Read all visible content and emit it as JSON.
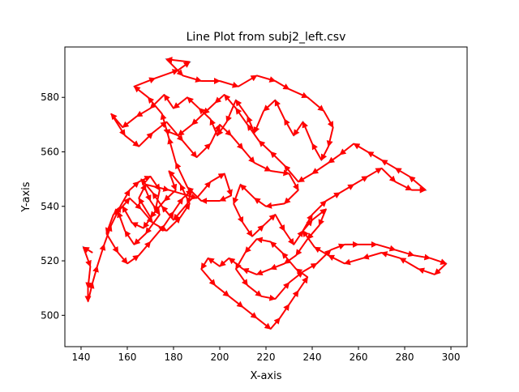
{
  "chart_data": {
    "type": "line",
    "title": "Line Plot from subj2_left.csv",
    "xlabel": "X-axis",
    "ylabel": "Y-axis",
    "xlim": [
      133,
      307
    ],
    "ylim": [
      488.5,
      598.5
    ],
    "xticks": [
      140,
      160,
      180,
      200,
      220,
      240,
      260,
      280,
      300
    ],
    "yticks": [
      500,
      520,
      540,
      560,
      580
    ],
    "grid": false,
    "legend": "none",
    "colors": {
      "line": "#1f77b4",
      "arrow": "#ff0000",
      "axes": "#000000"
    },
    "series": [
      {
        "values": [
          [
            145,
            523
          ],
          [
            141,
            525
          ],
          [
            144,
            518
          ],
          [
            143,
            510
          ],
          [
            143,
            505
          ],
          [
            145,
            512
          ],
          [
            147,
            518
          ],
          [
            150,
            526
          ],
          [
            153,
            533
          ],
          [
            157,
            540
          ],
          [
            161,
            546
          ],
          [
            165,
            549
          ],
          [
            170,
            551
          ],
          [
            174,
            546
          ],
          [
            172,
            538
          ],
          [
            167,
            532
          ],
          [
            162,
            534
          ],
          [
            158,
            540
          ],
          [
            154,
            537
          ],
          [
            151,
            530
          ],
          [
            156,
            523
          ],
          [
            160,
            519
          ],
          [
            165,
            522
          ],
          [
            170,
            527
          ],
          [
            176,
            533
          ],
          [
            180,
            538
          ],
          [
            184,
            543
          ],
          [
            188,
            546
          ],
          [
            186,
            541
          ],
          [
            180,
            535
          ],
          [
            175,
            540
          ],
          [
            171,
            545
          ],
          [
            166,
            550
          ],
          [
            170,
            542
          ],
          [
            174,
            537
          ],
          [
            168,
            530
          ],
          [
            163,
            526
          ],
          [
            159,
            531
          ],
          [
            156,
            538
          ],
          [
            161,
            543
          ],
          [
            166,
            539
          ],
          [
            171,
            534
          ],
          [
            177,
            531
          ],
          [
            183,
            536
          ],
          [
            187,
            541
          ],
          [
            183,
            548
          ],
          [
            178,
            553
          ],
          [
            181,
            546
          ],
          [
            176,
            542
          ],
          [
            170,
            536
          ],
          [
            165,
            543
          ],
          [
            168,
            548
          ],
          [
            178,
            546
          ],
          [
            190,
            543
          ],
          [
            196,
            549
          ],
          [
            202,
            552
          ],
          [
            205,
            544
          ],
          [
            200,
            542
          ],
          [
            192,
            542
          ],
          [
            186,
            547
          ],
          [
            181,
            556
          ],
          [
            178,
            565
          ],
          [
            175,
            574
          ],
          [
            169,
            580
          ],
          [
            163,
            584
          ],
          [
            172,
            587
          ],
          [
            182,
            590
          ],
          [
            187,
            593
          ],
          [
            177,
            594
          ],
          [
            184,
            588
          ],
          [
            192,
            586
          ],
          [
            200,
            586
          ],
          [
            208,
            584
          ],
          [
            216,
            588
          ],
          [
            224,
            586
          ],
          [
            230,
            583
          ],
          [
            238,
            580
          ],
          [
            245,
            575
          ],
          [
            249,
            569
          ],
          [
            247,
            562
          ],
          [
            244,
            557
          ],
          [
            240,
            563
          ],
          [
            236,
            571
          ],
          [
            232,
            566
          ],
          [
            228,
            572
          ],
          [
            224,
            579
          ],
          [
            219,
            575
          ],
          [
            215,
            567
          ],
          [
            212,
            573
          ],
          [
            207,
            579
          ],
          [
            203,
            571
          ],
          [
            199,
            566
          ],
          [
            196,
            572
          ],
          [
            191,
            576
          ],
          [
            186,
            580
          ],
          [
            180,
            576
          ],
          [
            176,
            581
          ],
          [
            170,
            576
          ],
          [
            164,
            573
          ],
          [
            158,
            569
          ],
          [
            153,
            574
          ],
          [
            159,
            566
          ],
          [
            165,
            562
          ],
          [
            171,
            567
          ],
          [
            177,
            571
          ],
          [
            184,
            564
          ],
          [
            190,
            558
          ],
          [
            196,
            563
          ],
          [
            200,
            570
          ],
          [
            205,
            566
          ],
          [
            210,
            561
          ],
          [
            215,
            556
          ],
          [
            222,
            553
          ],
          [
            230,
            552
          ],
          [
            234,
            546
          ],
          [
            228,
            541
          ],
          [
            220,
            540
          ],
          [
            215,
            543
          ],
          [
            209,
            548
          ],
          [
            206,
            541
          ],
          [
            210,
            534
          ],
          [
            214,
            529
          ],
          [
            219,
            533
          ],
          [
            224,
            537
          ],
          [
            228,
            531
          ],
          [
            232,
            526
          ],
          [
            236,
            531
          ],
          [
            240,
            535
          ],
          [
            246,
            539
          ],
          [
            243,
            533
          ],
          [
            238,
            528
          ],
          [
            233,
            522
          ],
          [
            228,
            519
          ],
          [
            222,
            517
          ],
          [
            216,
            515
          ],
          [
            210,
            517
          ],
          [
            204,
            521
          ],
          [
            200,
            518
          ],
          [
            195,
            521
          ],
          [
            192,
            517
          ],
          [
            198,
            511
          ],
          [
            204,
            507
          ],
          [
            210,
            503
          ],
          [
            216,
            499
          ],
          [
            222,
            495
          ],
          [
            226,
            499
          ],
          [
            230,
            504
          ],
          [
            234,
            509
          ],
          [
            238,
            514
          ],
          [
            233,
            517
          ],
          [
            227,
            523
          ],
          [
            222,
            527
          ],
          [
            216,
            528
          ],
          [
            211,
            523
          ],
          [
            207,
            517
          ],
          [
            212,
            511
          ],
          [
            218,
            507
          ],
          [
            224,
            506
          ],
          [
            230,
            512
          ],
          [
            236,
            516
          ],
          [
            242,
            519
          ],
          [
            248,
            524
          ],
          [
            254,
            526
          ],
          [
            260,
            526
          ],
          [
            268,
            526
          ],
          [
            276,
            524
          ],
          [
            284,
            522
          ],
          [
            291,
            521
          ],
          [
            298,
            519
          ],
          [
            293,
            515
          ],
          [
            286,
            517
          ],
          [
            278,
            521
          ],
          [
            270,
            523
          ],
          [
            262,
            521
          ],
          [
            254,
            519
          ],
          [
            247,
            522
          ],
          [
            241,
            525
          ],
          [
            236,
            531
          ],
          [
            240,
            537
          ],
          [
            246,
            542
          ],
          [
            252,
            545
          ],
          [
            258,
            548
          ],
          [
            264,
            551
          ],
          [
            270,
            554
          ],
          [
            276,
            549
          ],
          [
            283,
            546
          ],
          [
            289,
            546
          ],
          [
            282,
            551
          ],
          [
            276,
            554
          ],
          [
            270,
            557
          ],
          [
            264,
            560
          ],
          [
            258,
            563
          ],
          [
            252,
            559
          ],
          [
            247,
            556
          ],
          [
            240,
            552
          ],
          [
            234,
            549
          ],
          [
            228,
            555
          ],
          [
            222,
            560
          ],
          [
            217,
            564
          ],
          [
            212,
            570
          ],
          [
            207,
            576
          ],
          [
            202,
            581
          ],
          [
            198,
            578
          ],
          [
            193,
            574
          ],
          [
            188,
            570
          ],
          [
            182,
            566
          ],
          [
            176,
            568
          ]
        ]
      }
    ]
  }
}
